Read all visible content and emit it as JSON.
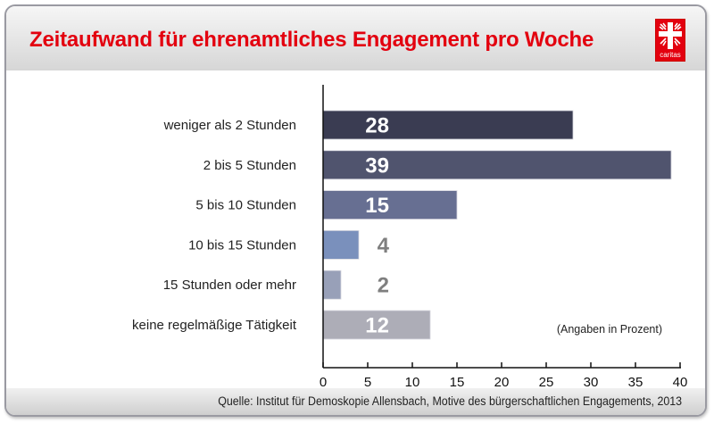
{
  "header": {
    "title": "Zeitaufwand für ehrenamtliches Engagement pro Woche",
    "logo_text": "caritas",
    "logo_icon": "caritas-cross-icon"
  },
  "footer": {
    "source": "Quelle: Institut für Demoskopie Allensbach, Motive des bürgerschaftlichen Engagements, 2013"
  },
  "chart_data": {
    "type": "bar",
    "orientation": "horizontal",
    "title": "Zeitaufwand für ehrenamtliches Engagement pro Woche",
    "xlabel": "",
    "ylabel": "",
    "unit_note": "(Angaben in Prozent)",
    "categories": [
      "weniger als 2 Stunden",
      "2 bis 5 Stunden",
      "5 bis 10 Stunden",
      "10 bis 15 Stunden",
      "15 Stunden oder mehr",
      "keine regelmäßige Tätigkeit"
    ],
    "values": [
      28,
      39,
      15,
      4,
      2,
      12
    ],
    "value_labels": [
      "28",
      "39",
      "15",
      "4",
      "2",
      "12"
    ],
    "bar_colors": [
      "#3a3c52",
      "#50546e",
      "#676f92",
      "#7a90bc",
      "#98a0b8",
      "#adadb7"
    ],
    "label_colors": [
      "#ffffff",
      "#ffffff",
      "#ffffff",
      "#7f7f7f",
      "#7f7f7f",
      "#ffffff"
    ],
    "xlim": [
      0,
      40
    ],
    "xticks": [
      0,
      5,
      10,
      15,
      20,
      25,
      30,
      35,
      40
    ],
    "xtick_labels": [
      "0",
      "5",
      "10",
      "15",
      "20",
      "25",
      "30",
      "35",
      "40"
    ],
    "grid": false,
    "legend": "none"
  }
}
